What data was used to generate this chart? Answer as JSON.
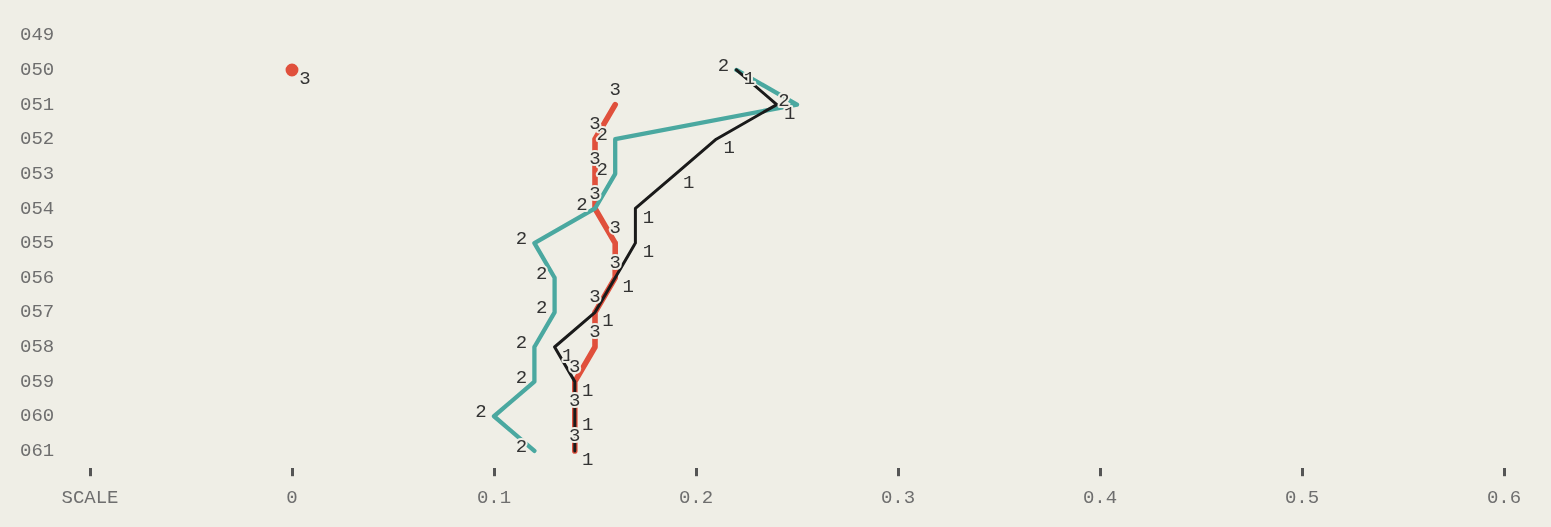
{
  "chart_data": {
    "type": "line",
    "orientation": "horizontal",
    "categories": [
      "049",
      "050",
      "051",
      "052",
      "053",
      "054",
      "055",
      "056",
      "057",
      "058",
      "059",
      "060",
      "061"
    ],
    "series": [
      {
        "name": "1",
        "color": "#1a1a1a",
        "values": [
          null,
          0.22,
          0.24,
          0.21,
          0.19,
          0.17,
          0.17,
          0.16,
          0.15,
          0.13,
          0.14,
          0.14,
          0.14
        ]
      },
      {
        "name": "2",
        "color": "#4aa8a0",
        "values": [
          null,
          0.22,
          0.25,
          0.16,
          0.16,
          0.15,
          0.12,
          0.13,
          0.13,
          0.12,
          0.12,
          0.1,
          0.12
        ]
      },
      {
        "name": "3",
        "color": "#e0503c",
        "values": [
          null,
          null,
          0.16,
          0.15,
          0.15,
          0.15,
          0.16,
          0.16,
          0.15,
          0.15,
          0.14,
          0.14,
          0.14
        ]
      },
      {
        "name": "3",
        "type": "scatter",
        "color": "#e0503c",
        "values": [
          null,
          0,
          null,
          null,
          null,
          null,
          null,
          null,
          null,
          null,
          null,
          null,
          null
        ]
      }
    ],
    "xlim": [
      -0.1,
      0.6
    ],
    "xticks": [
      {
        "value": -0.1,
        "label": "SCALE"
      },
      0,
      0.1,
      0.2,
      0.3,
      0.4,
      0.5,
      0.6
    ],
    "grid": false,
    "legend": false,
    "line_style": "solid"
  }
}
